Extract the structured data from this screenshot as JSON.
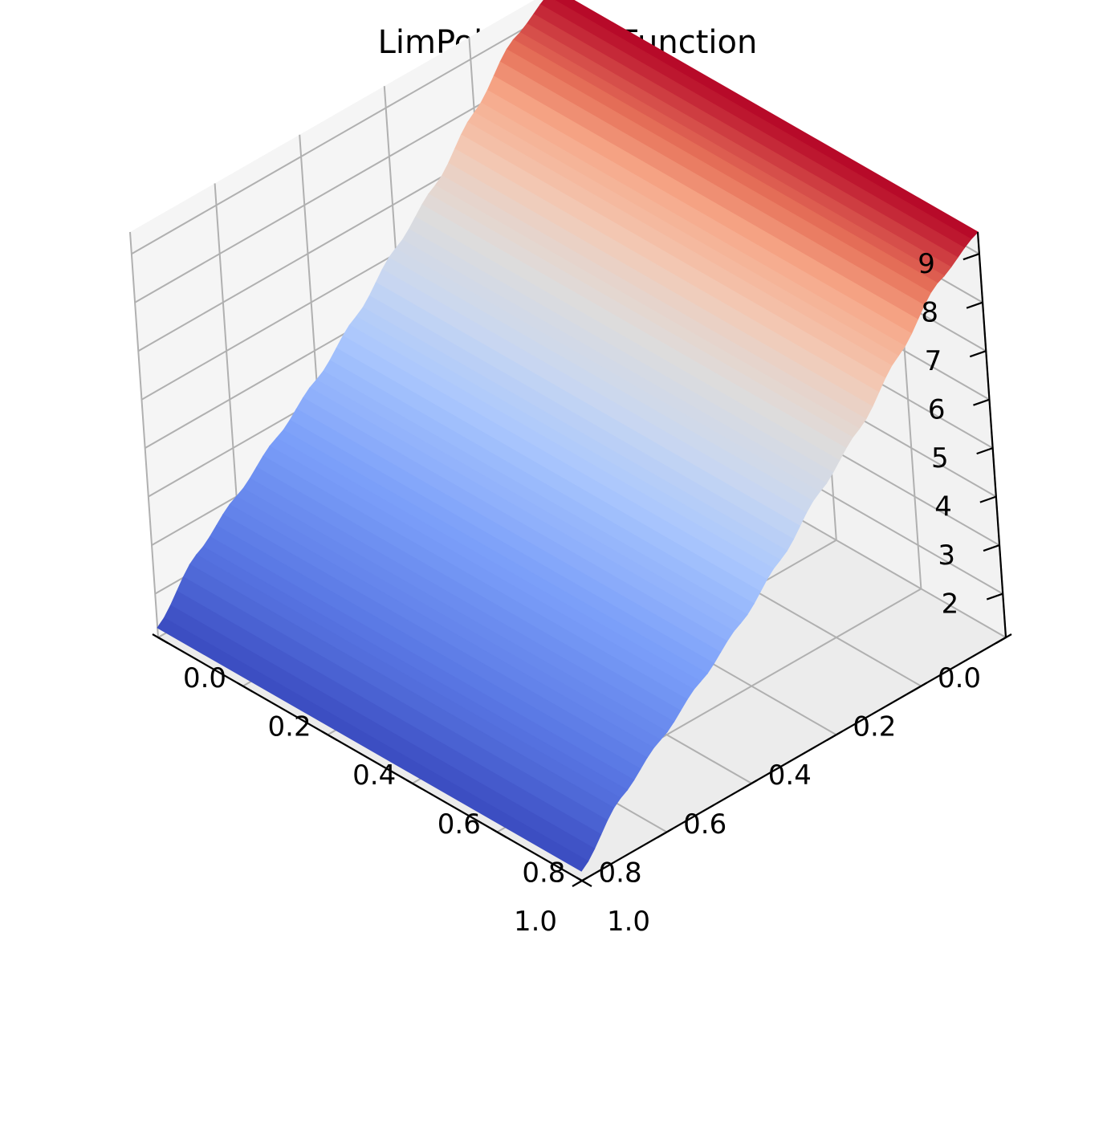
{
  "chart_data": {
    "type": "surface",
    "title": "LimPolynomial Function",
    "xlabel": "",
    "ylabel": "",
    "zlabel": "",
    "colormap": "coolwarm",
    "x_ticks": [
      "0.0",
      "0.2",
      "0.4",
      "0.6",
      "0.8",
      "1.0"
    ],
    "y_ticks": [
      "0.0",
      "0.2",
      "0.4",
      "0.6",
      "0.8",
      "1.0"
    ],
    "z_ticks": [
      "2",
      "3",
      "4",
      "5",
      "6",
      "7",
      "8",
      "9"
    ],
    "xlim": [
      0,
      1
    ],
    "ylim": [
      0,
      1
    ],
    "zlim": [
      1.1,
      9.45
    ],
    "grid": true,
    "surface_profile": {
      "axis": "y",
      "note": "z depends on y only; constant along x",
      "y": [
        0.0,
        0.1,
        0.2,
        0.3,
        0.4,
        0.5,
        0.6,
        0.7,
        0.8,
        0.9,
        1.0
      ],
      "z": [
        9.45,
        8.9,
        7.9,
        6.9,
        6.1,
        5.2,
        4.4,
        3.7,
        3.0,
        2.3,
        1.3
      ]
    },
    "colors": {
      "low": "#3b4cc0",
      "mid": "#dddddd",
      "high": "#b40426",
      "pane": "#f2f2f2",
      "grid": "#b0b0b0"
    }
  }
}
